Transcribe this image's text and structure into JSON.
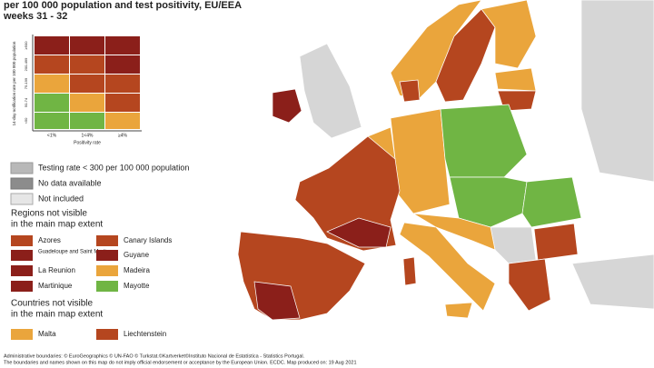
{
  "header": {
    "title_line1": "per 100 000 population and test positivity, EU/EEA",
    "title_line2": "weeks 31 - 32"
  },
  "matrix": {
    "y_label": "14-day notification rate per 100 000 population",
    "y_ticks": [
      "≥500",
      "200-499",
      "75-199",
      "50-74",
      "<50"
    ],
    "x_ticks": [
      "<1%",
      "1<4%",
      "≥4%"
    ],
    "x_label": "Positivity rate"
  },
  "legend": {
    "items": [
      "Testing rate < 300 per 100 000 population",
      "No data available",
      "Not included"
    ]
  },
  "regions": {
    "title_line1": "Regions not visible",
    "title_line2": "in the main map extent",
    "items": [
      "Azores",
      "Canary Islands",
      "Guadeloupe and Saint Martin",
      "Guyane",
      "La Reunion",
      "Madeira",
      "Martinique",
      "Mayotte"
    ]
  },
  "countries": {
    "title_line1": "Countries not visible",
    "title_line2": "in the main map extent",
    "items": [
      "Malta",
      "Liechtenstein"
    ]
  },
  "footer": {
    "line1": "Administrative boundaries: © EuroGeographics © UN-FAO © Turkstat.©Kartverket©Instituto Nacional de Estatística - Statistics Portugal.",
    "line2": "The boundaries and names shown on this map do not imply official endorsement or acceptance by the European Union. ECDC. Map produced on: 19 Aug 2021"
  }
}
